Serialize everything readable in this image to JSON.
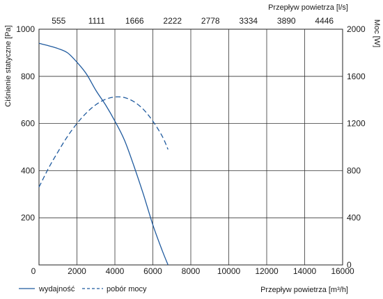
{
  "chart_data": {
    "type": "line",
    "x_axis_bottom": {
      "label": "Przepływ powietrza [m³/h]",
      "ticks": [
        "0",
        "2000",
        "4000",
        "6000",
        "8000",
        "10000",
        "12000",
        "14000",
        "16000"
      ],
      "range": [
        0,
        16000
      ]
    },
    "x_axis_top": {
      "label": "Przepływ powietrza [l/s]",
      "ticks": [
        "555",
        "1111",
        "1666",
        "2222",
        "2778",
        "3334",
        "3890",
        "4446"
      ]
    },
    "y_axis_left": {
      "label": "Ciśnienie statyczne [Pa]",
      "ticks": [
        "0",
        "200",
        "400",
        "600",
        "800",
        "1000"
      ],
      "range": [
        0,
        1000
      ]
    },
    "y_axis_right": {
      "label": "Moc [W]",
      "ticks": [
        "0",
        "400",
        "800",
        "1200",
        "1600",
        "2000"
      ],
      "range": [
        0,
        2000
      ]
    },
    "grid": true,
    "legend_position": "bottom-left",
    "series": [
      {
        "name": "wydajność",
        "axis": "left",
        "style": "solid",
        "color": "#1f5a9e",
        "x": [
          0,
          500,
          1000,
          1500,
          2000,
          2500,
          3000,
          3500,
          4000,
          4500,
          5000,
          5500,
          6000,
          6500,
          6800
        ],
        "y": [
          940,
          930,
          918,
          900,
          860,
          810,
          740,
          680,
          610,
          530,
          420,
          300,
          170,
          60,
          0
        ]
      },
      {
        "name": "pobór mocy",
        "axis": "right",
        "style": "dashed",
        "color": "#1f5a9e",
        "x": [
          0,
          500,
          1000,
          1500,
          2000,
          2500,
          3000,
          3500,
          4000,
          4500,
          5000,
          5500,
          6000,
          6500,
          6800
        ],
        "y": [
          660,
          820,
          960,
          1090,
          1200,
          1290,
          1360,
          1405,
          1425,
          1420,
          1385,
          1320,
          1220,
          1090,
          980
        ]
      }
    ],
    "legend": [
      {
        "label": "wydajność",
        "style": "solid"
      },
      {
        "label": "pobór mocy",
        "style": "dashed"
      }
    ]
  }
}
